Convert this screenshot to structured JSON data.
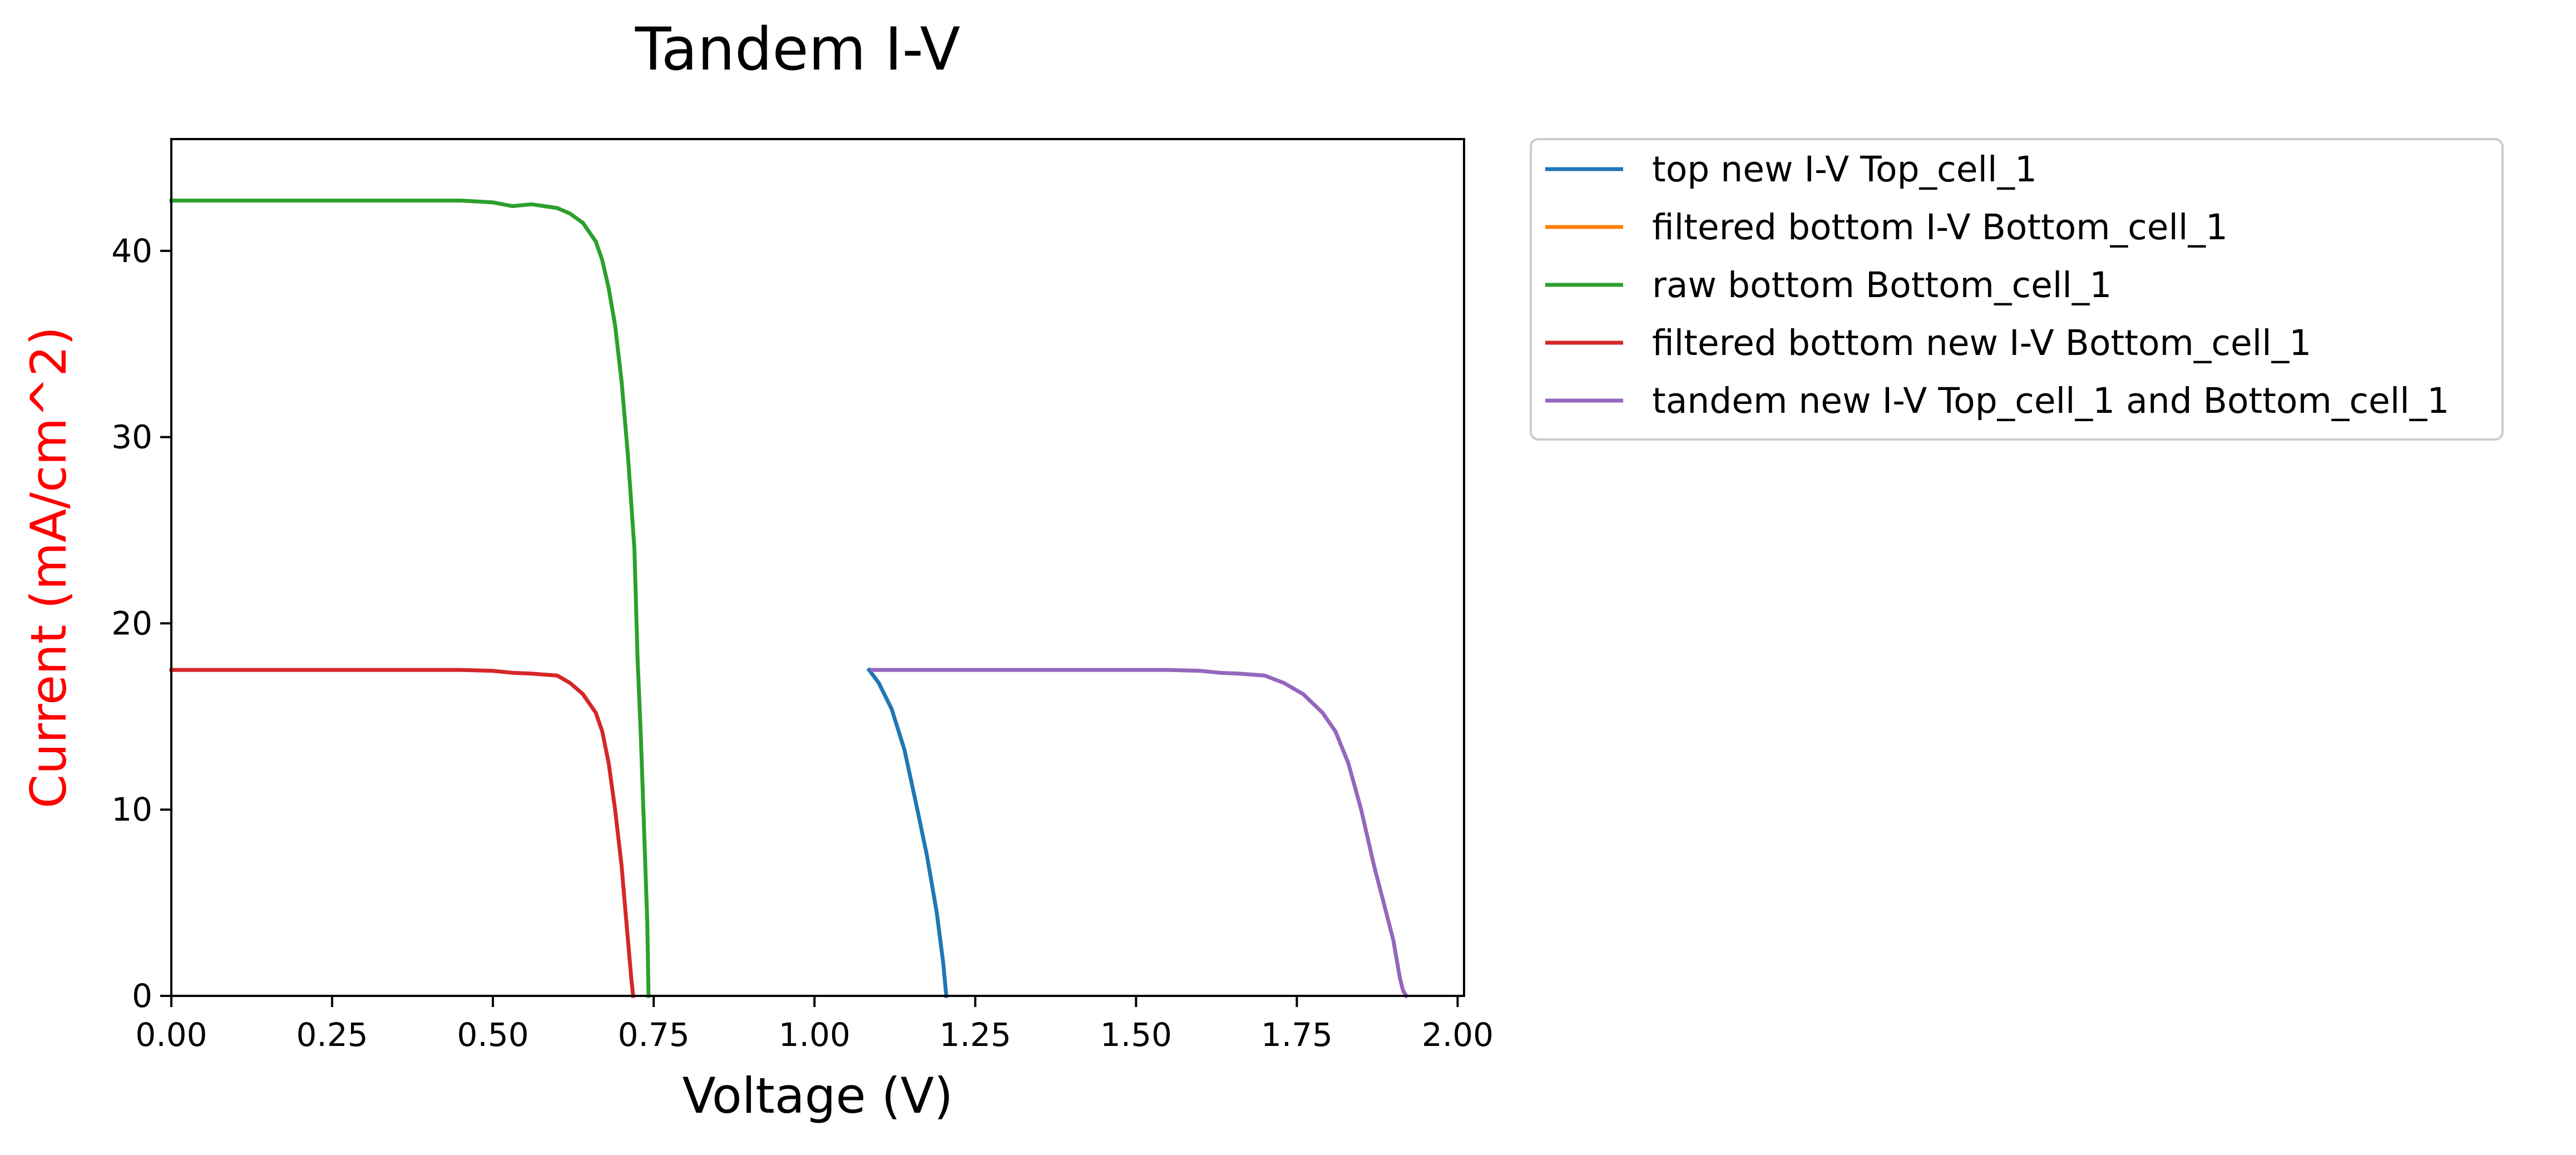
{
  "chart_data": {
    "type": "line",
    "title": "Tandem I-V",
    "xlabel": "Voltage (V)",
    "ylabel": "Current (mA/cm^2)",
    "xlim": [
      0.0,
      2.01
    ],
    "ylim": [
      0,
      46
    ],
    "x_ticks": [
      "0.00",
      "0.25",
      "0.50",
      "0.75",
      "1.00",
      "1.25",
      "1.50",
      "1.75",
      "2.00"
    ],
    "x_tick_values": [
      0.0,
      0.25,
      0.5,
      0.75,
      1.0,
      1.25,
      1.5,
      1.75,
      2.0
    ],
    "y_ticks": [
      "0",
      "10",
      "20",
      "30",
      "40"
    ],
    "y_tick_values": [
      0,
      10,
      20,
      30,
      40
    ],
    "grid": false,
    "legend_position": "outside-right-top",
    "colors": {
      "ylabel": "#ff0000",
      "blue": "#1f77b4",
      "orange": "#ff7f0e",
      "green": "#2ca02c",
      "red": "#d62728",
      "purple": "#9467bd"
    },
    "series": [
      {
        "name": "top new I-V Top_cell_1",
        "color": "#1f77b4",
        "x": [
          1.085,
          1.1,
          1.12,
          1.14,
          1.16,
          1.175,
          1.19,
          1.2,
          1.205
        ],
        "y": [
          17.5,
          16.8,
          15.4,
          13.2,
          10.0,
          7.5,
          4.5,
          1.8,
          0
        ]
      },
      {
        "name": "filtered bottom I-V Bottom_cell_1",
        "color": "#ff7f0e",
        "x": [],
        "y": []
      },
      {
        "name": "raw bottom Bottom_cell_1",
        "color": "#2ca02c",
        "x": [
          0.0,
          0.1,
          0.2,
          0.3,
          0.4,
          0.45,
          0.5,
          0.53,
          0.56,
          0.6,
          0.62,
          0.64,
          0.66,
          0.67,
          0.68,
          0.69,
          0.7,
          0.71,
          0.72,
          0.725,
          0.73,
          0.735,
          0.74,
          0.742
        ],
        "y": [
          42.7,
          42.7,
          42.7,
          42.7,
          42.7,
          42.7,
          42.6,
          42.4,
          42.5,
          42.3,
          42.0,
          41.5,
          40.5,
          39.5,
          38.0,
          36.0,
          33.0,
          29.0,
          24.0,
          18.0,
          14.0,
          9.0,
          4.0,
          0
        ]
      },
      {
        "name": "filtered bottom new I-V Bottom_cell_1",
        "color": "#d62728",
        "x": [
          0.0,
          0.1,
          0.2,
          0.3,
          0.4,
          0.45,
          0.5,
          0.53,
          0.56,
          0.6,
          0.62,
          0.64,
          0.66,
          0.67,
          0.68,
          0.69,
          0.7,
          0.705,
          0.71,
          0.715,
          0.718
        ],
        "y": [
          17.5,
          17.5,
          17.5,
          17.5,
          17.5,
          17.5,
          17.45,
          17.35,
          17.3,
          17.2,
          16.8,
          16.2,
          15.2,
          14.2,
          12.5,
          10.0,
          7.0,
          5.0,
          3.0,
          1.0,
          0
        ]
      },
      {
        "name": "tandem new I-V Top_cell_1 and Bottom_cell_1",
        "color": "#9467bd",
        "x": [
          1.09,
          1.2,
          1.3,
          1.4,
          1.5,
          1.55,
          1.6,
          1.63,
          1.66,
          1.7,
          1.73,
          1.76,
          1.79,
          1.81,
          1.83,
          1.85,
          1.87,
          1.885,
          1.9,
          1.91,
          1.915,
          1.92
        ],
        "y": [
          17.5,
          17.5,
          17.5,
          17.5,
          17.5,
          17.5,
          17.45,
          17.35,
          17.3,
          17.2,
          16.8,
          16.2,
          15.2,
          14.2,
          12.5,
          10.0,
          7.0,
          5.0,
          3.0,
          1.0,
          0.3,
          0
        ]
      }
    ]
  }
}
